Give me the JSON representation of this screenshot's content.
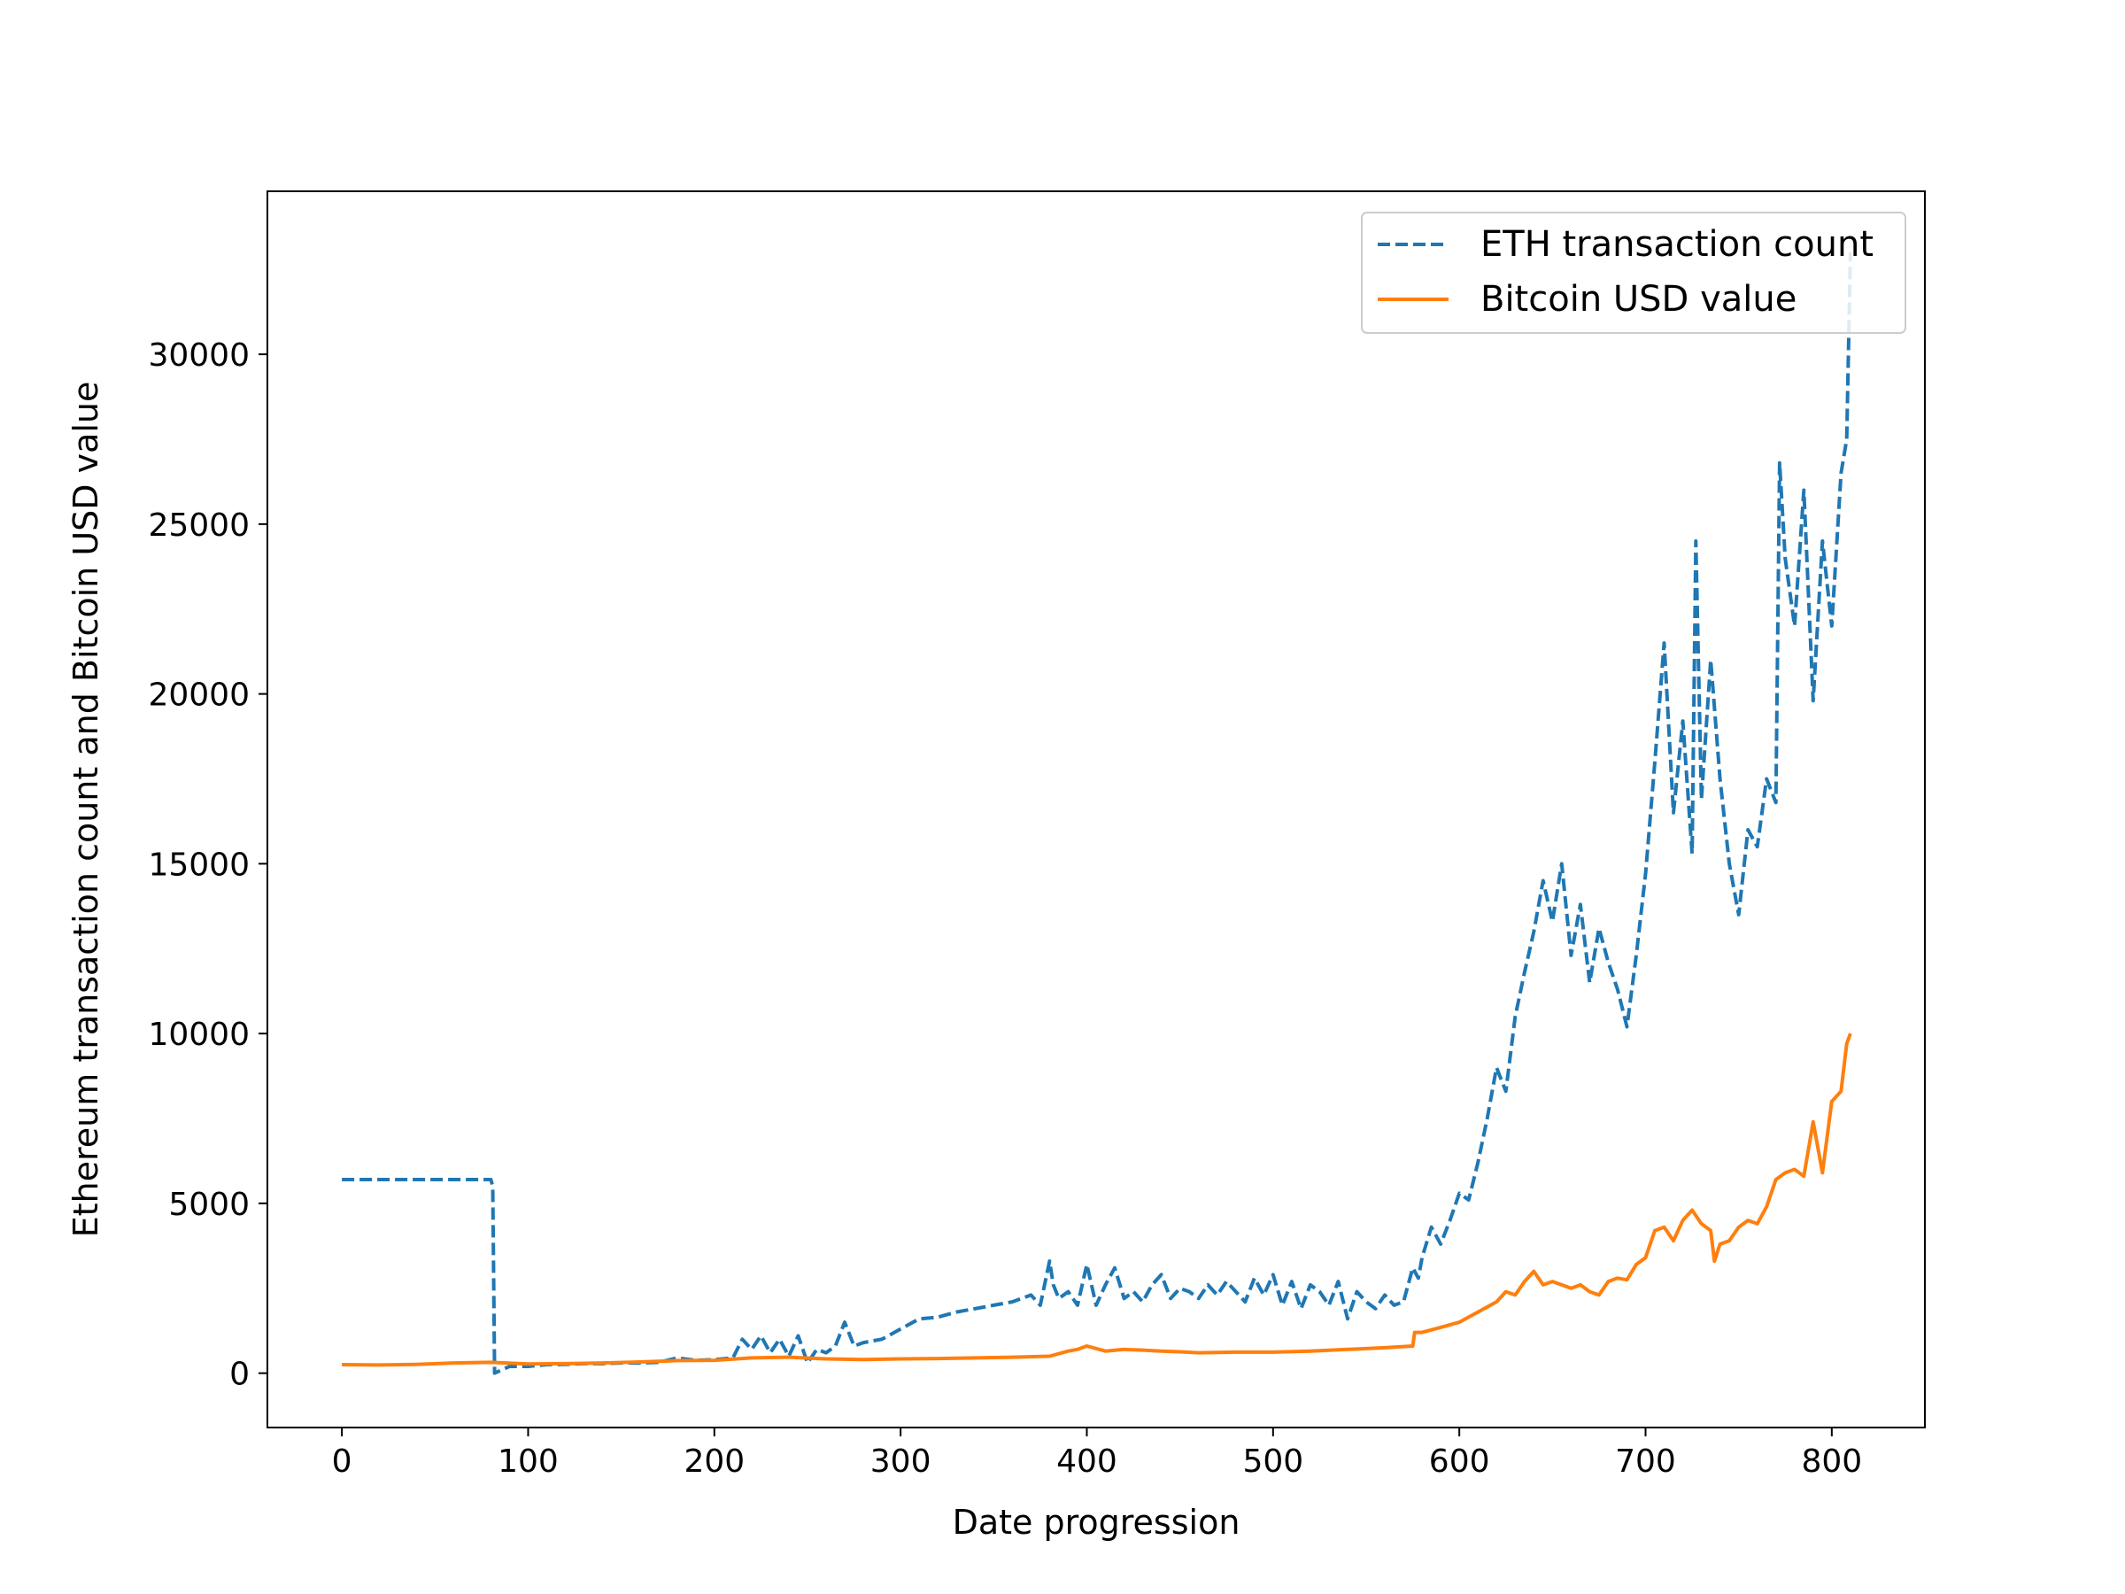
{
  "chart_data": {
    "type": "line",
    "title": "",
    "xlabel": "Date progression",
    "ylabel": "Ethereum transaction count and Bitcoin USD value",
    "xlim": [
      -40,
      850
    ],
    "ylim": [
      -1600,
      34800
    ],
    "xticks": [
      0,
      100,
      200,
      300,
      400,
      500,
      600,
      700,
      800
    ],
    "yticks": [
      0,
      5000,
      10000,
      15000,
      20000,
      25000,
      30000
    ],
    "grid": false,
    "legend_position": "upper right",
    "series": [
      {
        "name": "ETH transaction count",
        "color": "#1f77b4",
        "style": "dashed",
        "x": [
          0,
          80,
          81,
          82,
          90,
          100,
          110,
          120,
          130,
          140,
          150,
          160,
          170,
          180,
          190,
          200,
          210,
          215,
          220,
          225,
          230,
          235,
          240,
          245,
          250,
          255,
          260,
          265,
          270,
          275,
          280,
          290,
          300,
          310,
          320,
          330,
          340,
          350,
          360,
          370,
          375,
          380,
          382,
          385,
          390,
          395,
          400,
          405,
          410,
          415,
          420,
          425,
          430,
          435,
          440,
          445,
          450,
          455,
          460,
          465,
          470,
          475,
          480,
          485,
          490,
          495,
          500,
          505,
          510,
          515,
          520,
          525,
          530,
          535,
          540,
          545,
          550,
          555,
          560,
          565,
          570,
          575,
          578,
          580,
          585,
          590,
          595,
          600,
          605,
          610,
          615,
          620,
          625,
          630,
          635,
          640,
          645,
          650,
          655,
          660,
          665,
          670,
          675,
          680,
          685,
          690,
          695,
          700,
          705,
          710,
          715,
          720,
          725,
          727,
          730,
          735,
          740,
          745,
          750,
          755,
          760,
          765,
          770,
          772,
          775,
          780,
          785,
          790,
          795,
          800,
          805,
          808,
          810
        ],
        "values": [
          5700,
          5700,
          5500,
          0,
          200,
          200,
          250,
          260,
          280,
          280,
          300,
          300,
          320,
          450,
          380,
          400,
          450,
          1000,
          700,
          1100,
          600,
          1000,
          500,
          1100,
          300,
          700,
          600,
          800,
          1500,
          800,
          900,
          1000,
          1300,
          1600,
          1650,
          1800,
          1900,
          2000,
          2100,
          2300,
          2000,
          3300,
          2600,
          2200,
          2400,
          2000,
          3200,
          2000,
          2600,
          3100,
          2200,
          2400,
          2100,
          2600,
          2900,
          2200,
          2500,
          2400,
          2200,
          2600,
          2300,
          2700,
          2400,
          2100,
          2800,
          2300,
          2900,
          2000,
          2700,
          1900,
          2600,
          2400,
          2000,
          2700,
          1600,
          2400,
          2100,
          1900,
          2300,
          2000,
          2100,
          3100,
          2800,
          3400,
          4300,
          3800,
          4500,
          5300,
          5100,
          6200,
          7500,
          9000,
          8300,
          10500,
          11800,
          13000,
          14500,
          13300,
          15000,
          12300,
          13800,
          11500,
          13100,
          12100,
          11300,
          10200,
          12300,
          14700,
          18000,
          21500,
          16500,
          19200,
          15300,
          24500,
          16900,
          21000,
          17500,
          15000,
          13500,
          16000,
          15500,
          17500,
          16800,
          26800,
          24000,
          22000,
          26000,
          19800,
          24500,
          22000,
          26500,
          27500,
          33000
        ]
      },
      {
        "name": "Bitcoin USD value",
        "color": "#ff7f0e",
        "style": "solid",
        "x": [
          0,
          20,
          40,
          60,
          80,
          100,
          120,
          140,
          160,
          180,
          200,
          220,
          240,
          260,
          280,
          300,
          320,
          340,
          360,
          380,
          390,
          395,
          400,
          410,
          420,
          430,
          440,
          450,
          460,
          480,
          500,
          520,
          540,
          560,
          575,
          576,
          580,
          590,
          600,
          610,
          620,
          625,
          630,
          635,
          640,
          645,
          650,
          655,
          660,
          665,
          670,
          675,
          680,
          685,
          690,
          695,
          700,
          705,
          710,
          715,
          720,
          725,
          730,
          735,
          737,
          740,
          745,
          750,
          755,
          760,
          765,
          770,
          775,
          780,
          785,
          790,
          792,
          795,
          800,
          805,
          808,
          810
        ],
        "values": [
          250,
          240,
          260,
          300,
          320,
          270,
          280,
          300,
          330,
          370,
          380,
          450,
          470,
          420,
          400,
          420,
          430,
          450,
          470,
          500,
          650,
          700,
          800,
          650,
          700,
          680,
          650,
          630,
          600,
          620,
          620,
          650,
          700,
          750,
          800,
          1200,
          1200,
          1350,
          1500,
          1800,
          2100,
          2400,
          2300,
          2700,
          3000,
          2600,
          2700,
          2600,
          2500,
          2600,
          2400,
          2300,
          2700,
          2800,
          2750,
          3200,
          3400,
          4200,
          4300,
          3900,
          4500,
          4800,
          4400,
          4200,
          3300,
          3800,
          3900,
          4300,
          4500,
          4400,
          4900,
          5700,
          5900,
          6000,
          5800,
          7400,
          6800,
          5900,
          8000,
          8300,
          9700,
          10000
        ]
      }
    ]
  }
}
